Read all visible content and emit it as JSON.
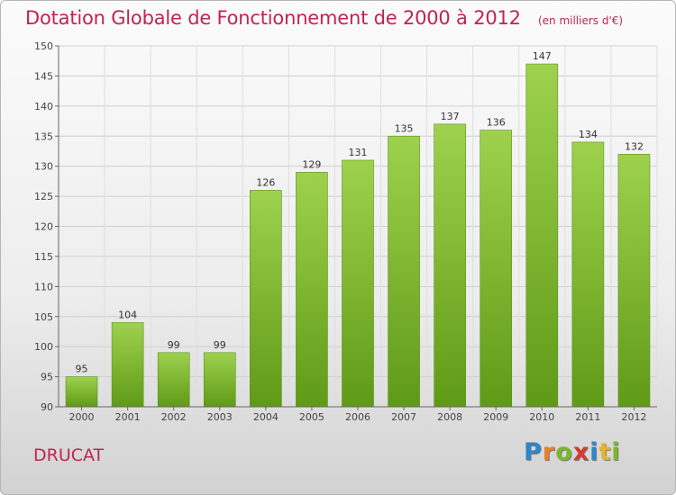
{
  "chart_data": {
    "type": "bar",
    "title": "Dotation Globale de Fonctionnement de 2000 à 2012",
    "unit_note": "(en milliers d'€)",
    "categories": [
      "2000",
      "2001",
      "2002",
      "2003",
      "2004",
      "2005",
      "2006",
      "2007",
      "2008",
      "2009",
      "2010",
      "2011",
      "2012"
    ],
    "values": [
      95,
      104,
      99,
      99,
      126,
      129,
      131,
      135,
      137,
      136,
      147,
      134,
      132
    ],
    "ylim": [
      90,
      150
    ],
    "yticks": [
      90,
      95,
      100,
      105,
      110,
      115,
      120,
      125,
      130,
      135,
      140,
      145,
      150
    ],
    "grid": true,
    "bar_color_top": "#9ed24e",
    "bar_color_bottom": "#5f9a16",
    "title_color": "#c0254f"
  },
  "footer": {
    "commune": "DRUCAT",
    "brand_letters": [
      {
        "char": "P",
        "color": "#2e86c9"
      },
      {
        "char": "r",
        "color": "#e8812b"
      },
      {
        "char": "o",
        "color": "#7cb82f"
      },
      {
        "char": "x",
        "color": "#d63b2f"
      },
      {
        "char": "i",
        "color": "#2e86c9"
      },
      {
        "char": "t",
        "color": "#e8b52b"
      },
      {
        "char": "i",
        "color": "#7cb82f"
      }
    ]
  }
}
